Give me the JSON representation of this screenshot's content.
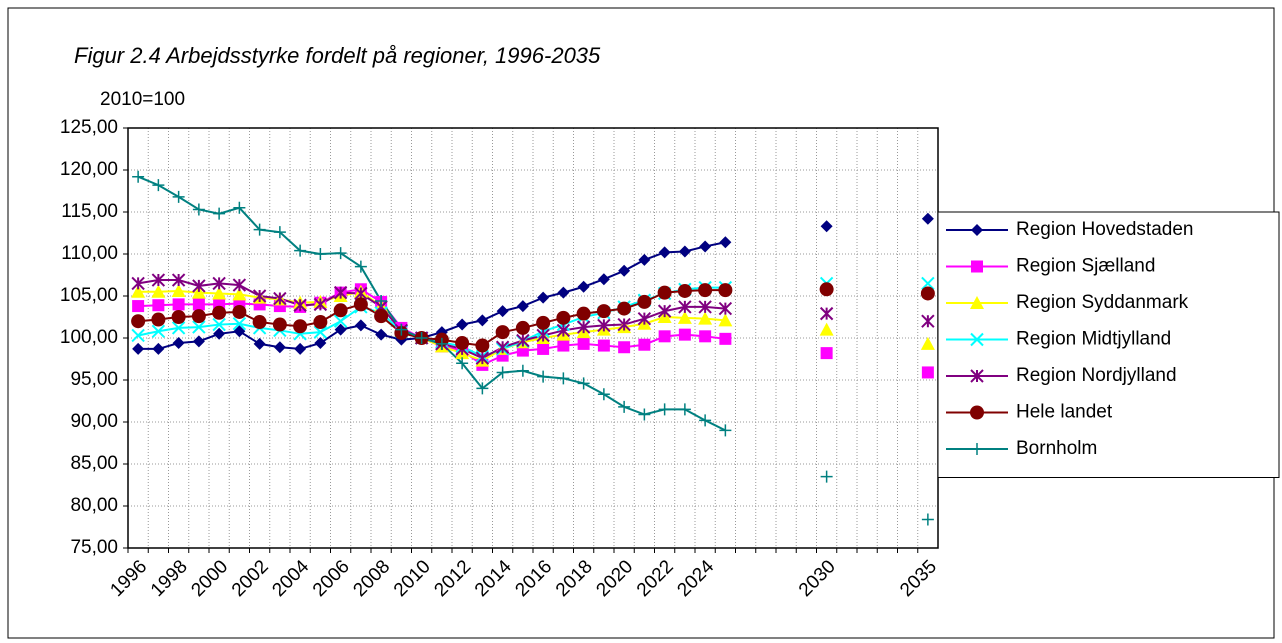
{
  "chart_data": {
    "type": "line",
    "title": "Figur 2.4 Arbejdsstyrke fordelt på regioner, 1996-2035",
    "subtitle": "2010=100",
    "categories": [
      "1996",
      null,
      "1998",
      null,
      "2000",
      null,
      "2002",
      null,
      "2004",
      null,
      "2006",
      null,
      "2008",
      null,
      "2010",
      null,
      "2012",
      null,
      "2014",
      null,
      "2016",
      null,
      "2018",
      null,
      "2020",
      null,
      "2022",
      null,
      "2024",
      null,
      null,
      null,
      null,
      null,
      "2030",
      null,
      null,
      null,
      null,
      "2035"
    ],
    "ylim": [
      75,
      125
    ],
    "yticks": [
      {
        "value": 75,
        "label": "75,00"
      },
      {
        "value": 80,
        "label": "80,00"
      },
      {
        "value": 85,
        "label": "85,00"
      },
      {
        "value": 90,
        "label": "90,00"
      },
      {
        "value": 95,
        "label": "95,00"
      },
      {
        "value": 100,
        "label": "100,00"
      },
      {
        "value": 105,
        "label": "105,00"
      },
      {
        "value": 110,
        "label": "110,00"
      },
      {
        "value": 115,
        "label": "115,00"
      },
      {
        "value": 120,
        "label": "120,00"
      },
      {
        "value": 125,
        "label": "125,00"
      }
    ],
    "grid": true,
    "legend": "right",
    "series": [
      {
        "name": "Region Hovedstaden",
        "color": "#000080",
        "marker": "diamond",
        "values": [
          98.7,
          98.7,
          99.4,
          99.6,
          100.5,
          100.8,
          99.3,
          98.9,
          98.7,
          99.4,
          101.0,
          101.5,
          100.4,
          99.8,
          100,
          100.7,
          101.6,
          102.1,
          103.2,
          103.8,
          104.8,
          105.4,
          106.1,
          107.0,
          108.0,
          109.3,
          110.2,
          110.3,
          110.9,
          111.4,
          null,
          null,
          null,
          null,
          113.3,
          null,
          null,
          null,
          null,
          114.2
        ]
      },
      {
        "name": "Region Sjælland",
        "color": "#ff00ff",
        "marker": "square",
        "values": [
          103.8,
          103.9,
          104.0,
          104.0,
          104.0,
          104.1,
          104.0,
          103.8,
          103.7,
          104.2,
          105.4,
          105.8,
          104.3,
          101.2,
          100,
          99.0,
          98.5,
          96.8,
          97.9,
          98.5,
          98.7,
          99.1,
          99.3,
          99.1,
          98.9,
          99.2,
          100.2,
          100.4,
          100.2,
          99.9,
          null,
          null,
          null,
          null,
          98.2,
          null,
          null,
          null,
          null,
          95.9
        ]
      },
      {
        "name": "Region Syddanmark",
        "color": "#ffff00",
        "marker": "triangle",
        "values": [
          105.5,
          105.5,
          105.6,
          105.4,
          105.3,
          105.2,
          104.8,
          104.6,
          104.2,
          104.3,
          105.0,
          105.5,
          103.8,
          100.9,
          100,
          99.0,
          98.2,
          97.3,
          98.7,
          99.5,
          100.0,
          100.4,
          100.7,
          101.0,
          101.3,
          101.7,
          102.5,
          102.4,
          102.3,
          102.1,
          null,
          null,
          null,
          null,
          101.0,
          null,
          null,
          null,
          null,
          99.3
        ]
      },
      {
        "name": "Region Midtjylland",
        "color": "#00ffff",
        "marker": "x",
        "values": [
          100.3,
          100.8,
          101.2,
          101.3,
          101.6,
          101.7,
          101.2,
          100.9,
          100.5,
          100.7,
          102.0,
          103.7,
          103.0,
          100.8,
          100,
          99.5,
          99.0,
          97.8,
          98.7,
          99.6,
          100.8,
          101.6,
          102.5,
          103.0,
          103.7,
          104.5,
          105.3,
          105.8,
          106.0,
          106.0,
          null,
          null,
          null,
          null,
          106.5,
          null,
          null,
          null,
          null,
          106.5
        ]
      },
      {
        "name": "Region Nordjylland",
        "color": "#800080",
        "marker": "star",
        "values": [
          106.5,
          106.9,
          106.9,
          106.2,
          106.5,
          106.3,
          105.0,
          104.7,
          103.9,
          104.0,
          105.4,
          105.3,
          103.7,
          100.9,
          100,
          99.3,
          98.7,
          97.6,
          98.9,
          99.7,
          100.3,
          100.9,
          101.3,
          101.5,
          101.6,
          102.3,
          103.2,
          103.7,
          103.7,
          103.5,
          null,
          null,
          null,
          null,
          102.9,
          null,
          null,
          null,
          null,
          102.0
        ]
      },
      {
        "name": "Hele landet",
        "color": "#800000",
        "marker": "circle",
        "values": [
          102.0,
          102.2,
          102.5,
          102.6,
          103.0,
          103.1,
          101.9,
          101.6,
          101.4,
          101.9,
          103.3,
          104.0,
          102.6,
          100.6,
          100,
          99.8,
          99.4,
          99.1,
          100.7,
          101.2,
          101.8,
          102.4,
          102.9,
          103.2,
          103.5,
          104.3,
          105.4,
          105.6,
          105.7,
          105.7,
          null,
          null,
          null,
          null,
          105.8,
          null,
          null,
          null,
          null,
          105.3
        ]
      },
      {
        "name": "Bornholm",
        "color": "#008080",
        "marker": "plus",
        "values": [
          119.2,
          118.2,
          116.8,
          115.3,
          114.8,
          115.5,
          112.9,
          112.6,
          110.4,
          110.0,
          110.1,
          108.5,
          104.4,
          101.0,
          100,
          99.3,
          97.0,
          94.0,
          95.9,
          96.1,
          95.4,
          95.2,
          94.6,
          93.3,
          91.8,
          90.9,
          91.5,
          91.5,
          90.2,
          89.0,
          null,
          null,
          null,
          null,
          83.5,
          null,
          null,
          null,
          null,
          78.4
        ]
      }
    ]
  }
}
